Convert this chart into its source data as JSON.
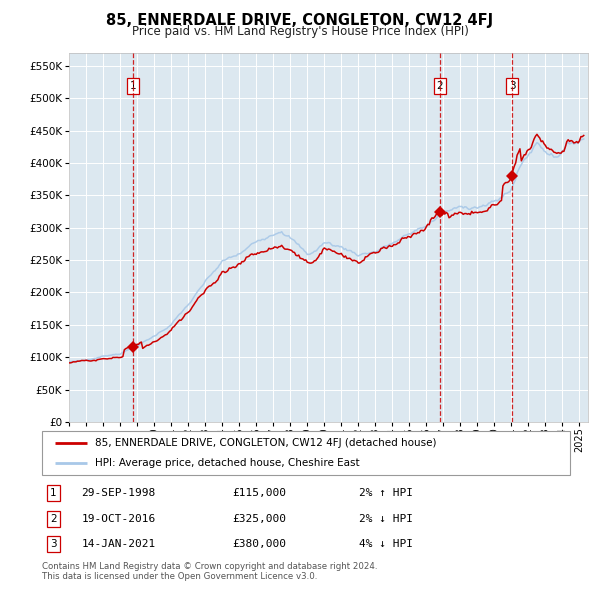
{
  "title": "85, ENNERDALE DRIVE, CONGLETON, CW12 4FJ",
  "subtitle": "Price paid vs. HM Land Registry's House Price Index (HPI)",
  "legend_line1": "85, ENNERDALE DRIVE, CONGLETON, CW12 4FJ (detached house)",
  "legend_line2": "HPI: Average price, detached house, Cheshire East",
  "transactions": [
    {
      "num": 1,
      "date": "29-SEP-1998",
      "price": 115000,
      "pct": "2%",
      "dir": "↑",
      "year": 1998.75
    },
    {
      "num": 2,
      "date": "19-OCT-2016",
      "price": 325000,
      "pct": "2%",
      "dir": "↓",
      "year": 2016.79
    },
    {
      "num": 3,
      "date": "14-JAN-2021",
      "price": 380000,
      "pct": "4%",
      "dir": "↓",
      "year": 2021.04
    }
  ],
  "trans_pp_prices": [
    115000,
    325000,
    380000
  ],
  "footer1": "Contains HM Land Registry data © Crown copyright and database right 2024.",
  "footer2": "This data is licensed under the Open Government Licence v3.0.",
  "hpi_color": "#a8c8e8",
  "price_color": "#cc0000",
  "marker_color": "#cc0000",
  "vline_color": "#cc0000",
  "plot_bg": "#dce8f0",
  "ylim": [
    0,
    570000
  ],
  "xlim_start": 1995.0,
  "xlim_end": 2025.5
}
